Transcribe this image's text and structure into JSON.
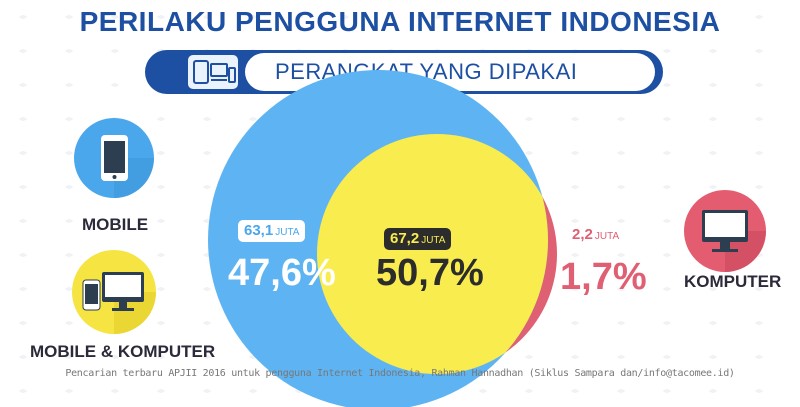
{
  "title": "PERILAKU PENGGUNA INTERNET INDONESIA",
  "subtitle": "PERANGKAT YANG DIPAKAI",
  "labels": {
    "mobile": "MOBILE",
    "mobile_komputer": "MOBILE & KOMPUTER",
    "komputer": "KOMPUTER"
  },
  "colors": {
    "mobile": "#5eb4f3",
    "both": "#f8ec4e",
    "komputer": "#df5f73",
    "title": "#1d4fa2",
    "icon_blue": "#4ba7eb",
    "icon_yellow": "#f5e442",
    "icon_red": "#e45c70"
  },
  "icons": [
    "smartphone-icon",
    "devices-icon",
    "desktop-monitor-icon"
  ],
  "chart_data": {
    "type": "venn",
    "title": "PERANGKAT YANG DIPAKAI",
    "segments": [
      {
        "name": "MOBILE",
        "value_label": "63,1",
        "value": 63.1,
        "unit": "JUTA",
        "percent_label": "47,6%",
        "percent": 47.6
      },
      {
        "name": "MOBILE & KOMPUTER",
        "value_label": "67,2",
        "value": 67.2,
        "unit": "JUTA",
        "percent_label": "50,7%",
        "percent": 50.7
      },
      {
        "name": "KOMPUTER",
        "value_label": "2,2",
        "value": 2.2,
        "unit": "JUTA",
        "percent_label": "1,7%",
        "percent": 1.7
      }
    ]
  },
  "footer": "Pencarian terbaru APJII 2016 untuk pengguna Internet Indonesia, Rahman Hannadhan (Siklus Sampara dan/info@tacomee.id)"
}
